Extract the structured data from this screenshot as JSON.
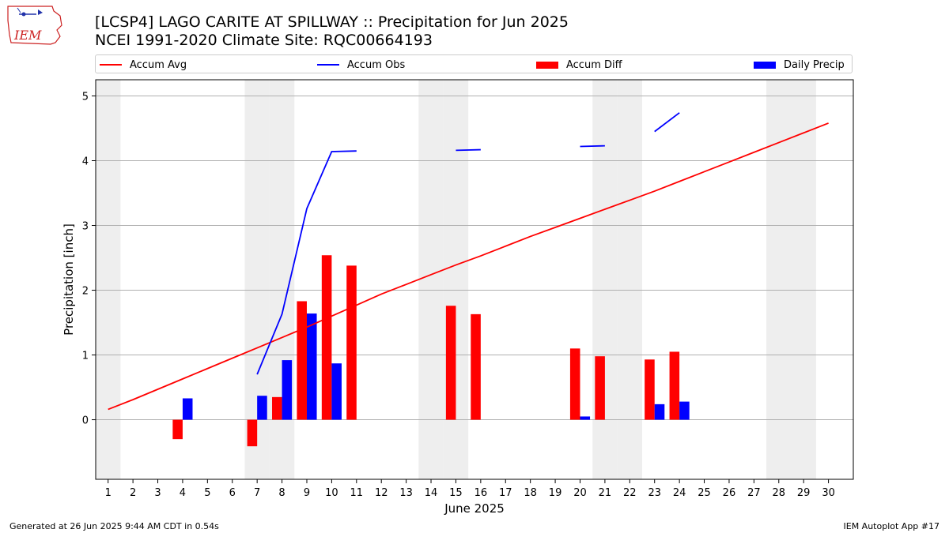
{
  "header": {
    "title_line1": "[LCSP4] LAGO CARITE AT SPILLWAY :: Precipitation for Jun 2025",
    "title_line2": "NCEI 1991-2020 Climate Site: RQC00664193",
    "logo_text": "IEM"
  },
  "footer": {
    "left": "Generated at 26 Jun 2025 9:44 AM CDT in 0.54s",
    "right": "IEM Autoplot App #17"
  },
  "colors": {
    "accum_avg": "#ff0000",
    "accum_obs": "#0000ff",
    "accum_diff": "#ff0000",
    "daily_precip": "#0000ff",
    "weekend_shade": "#eeeeee",
    "grid": "#b0b0b0"
  },
  "chart_data": {
    "type": "bar",
    "title": "[LCSP4] LAGO CARITE AT SPILLWAY :: Precipitation for Jun 2025",
    "subtitle": "NCEI 1991-2020 Climate Site: RQC00664193",
    "xlabel": "June 2025",
    "ylabel": "Precipitation [inch]",
    "xlim": [
      0.5,
      31
    ],
    "ylim": [
      -0.92,
      5.25
    ],
    "yticks": [
      0,
      1,
      2,
      3,
      4,
      5
    ],
    "grid": true,
    "legend_position": "top",
    "shaded_days": [
      1,
      7,
      8,
      14,
      15,
      21,
      22,
      28,
      29
    ],
    "x": [
      1,
      2,
      3,
      4,
      5,
      6,
      7,
      8,
      9,
      10,
      11,
      12,
      13,
      14,
      15,
      16,
      17,
      18,
      19,
      20,
      21,
      22,
      23,
      24,
      25,
      26,
      27,
      28,
      29,
      30
    ],
    "series": [
      {
        "name": "Accum Avg",
        "kind": "line",
        "values": [
          0.16,
          0.31,
          0.47,
          0.63,
          0.79,
          0.95,
          1.11,
          1.27,
          1.43,
          1.6,
          1.77,
          1.94,
          2.09,
          2.24,
          2.39,
          2.53,
          2.68,
          2.83,
          2.97,
          3.11,
          3.25,
          3.39,
          3.53,
          3.68,
          3.83,
          3.98,
          4.13,
          4.28,
          4.43,
          4.58
        ]
      },
      {
        "name": "Accum Obs",
        "kind": "line",
        "values": [
          null,
          null,
          null,
          null,
          null,
          null,
          0.7,
          1.63,
          3.26,
          4.14,
          4.15,
          null,
          null,
          null,
          4.16,
          4.17,
          null,
          null,
          null,
          4.22,
          4.23,
          null,
          4.45,
          4.74,
          null,
          null,
          null,
          null,
          null,
          null
        ]
      },
      {
        "name": "Accum Diff",
        "kind": "bar",
        "values": [
          null,
          null,
          null,
          -0.3,
          null,
          null,
          -0.41,
          0.35,
          1.83,
          2.54,
          2.38,
          null,
          null,
          null,
          1.76,
          1.63,
          null,
          null,
          null,
          1.1,
          0.98,
          null,
          0.93,
          1.05,
          null,
          null,
          null,
          null,
          null,
          null
        ]
      },
      {
        "name": "Daily Precip",
        "kind": "bar",
        "values": [
          null,
          null,
          null,
          0.33,
          null,
          null,
          0.37,
          0.92,
          1.64,
          0.87,
          null,
          null,
          null,
          null,
          null,
          null,
          null,
          null,
          null,
          0.05,
          null,
          null,
          0.24,
          0.28,
          null,
          null,
          null,
          null,
          null,
          null
        ]
      }
    ]
  }
}
